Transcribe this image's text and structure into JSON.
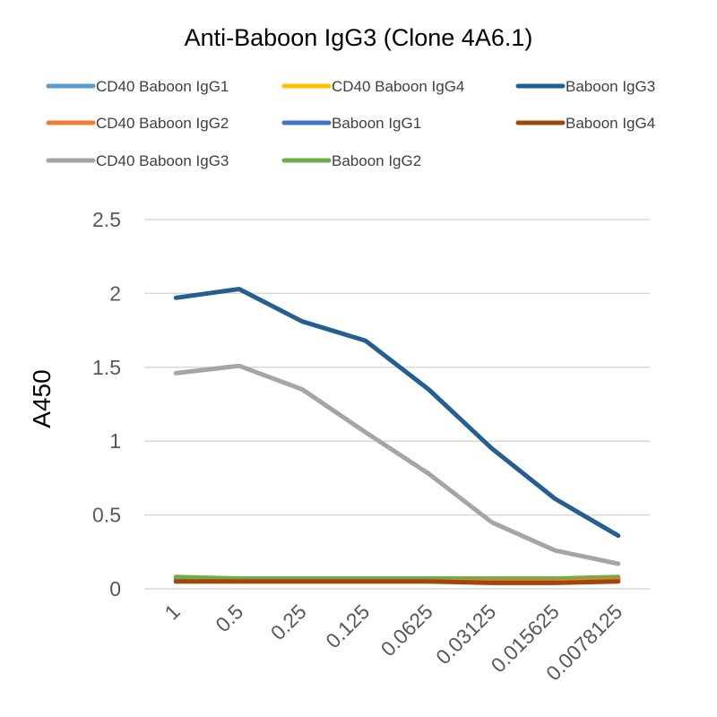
{
  "chart_data": {
    "type": "line",
    "title": "Anti-Baboon IgG3 (Clone 4A6.1)",
    "xlabel": "",
    "ylabel": "A450",
    "categories": [
      "1",
      "0.5",
      "0.25",
      "0.125",
      "0.0625",
      "0.03125",
      "0.015625",
      "0.0078125"
    ],
    "ylim": [
      0,
      2.5
    ],
    "yticks": [
      "0",
      "0.5",
      "1",
      "1.5",
      "2",
      "2.5"
    ],
    "grid": true,
    "legend_position": "top",
    "series": [
      {
        "name": "CD40 Baboon IgG1",
        "color": "#5b9bd5",
        "values": [
          0.07,
          0.06,
          0.07,
          0.07,
          0.07,
          0.06,
          0.06,
          0.07
        ]
      },
      {
        "name": "CD40 Baboon IgG2",
        "color": "#ed7d31",
        "values": [
          0.05,
          0.05,
          0.05,
          0.05,
          0.05,
          0.05,
          0.05,
          0.06
        ]
      },
      {
        "name": "CD40 Baboon IgG3",
        "color": "#a5a5a5",
        "values": [
          1.46,
          1.51,
          1.35,
          1.06,
          0.78,
          0.45,
          0.26,
          0.17
        ]
      },
      {
        "name": "CD40 Baboon IgG4",
        "color": "#ffc000",
        "values": [
          0.06,
          0.06,
          0.06,
          0.06,
          0.06,
          0.05,
          0.05,
          0.06
        ]
      },
      {
        "name": "Baboon IgG1",
        "color": "#4472c4",
        "values": [
          0.07,
          0.06,
          0.07,
          0.07,
          0.07,
          0.06,
          0.06,
          0.07
        ]
      },
      {
        "name": "Baboon IgG2",
        "color": "#70ad47",
        "values": [
          0.08,
          0.07,
          0.07,
          0.07,
          0.07,
          0.07,
          0.07,
          0.08
        ]
      },
      {
        "name": "Baboon IgG3",
        "color": "#255e91",
        "values": [
          1.97,
          2.03,
          1.81,
          1.68,
          1.35,
          0.95,
          0.61,
          0.36
        ]
      },
      {
        "name": "Baboon IgG4",
        "color": "#9e480e",
        "values": [
          0.05,
          0.05,
          0.05,
          0.05,
          0.05,
          0.04,
          0.04,
          0.05
        ]
      }
    ]
  }
}
